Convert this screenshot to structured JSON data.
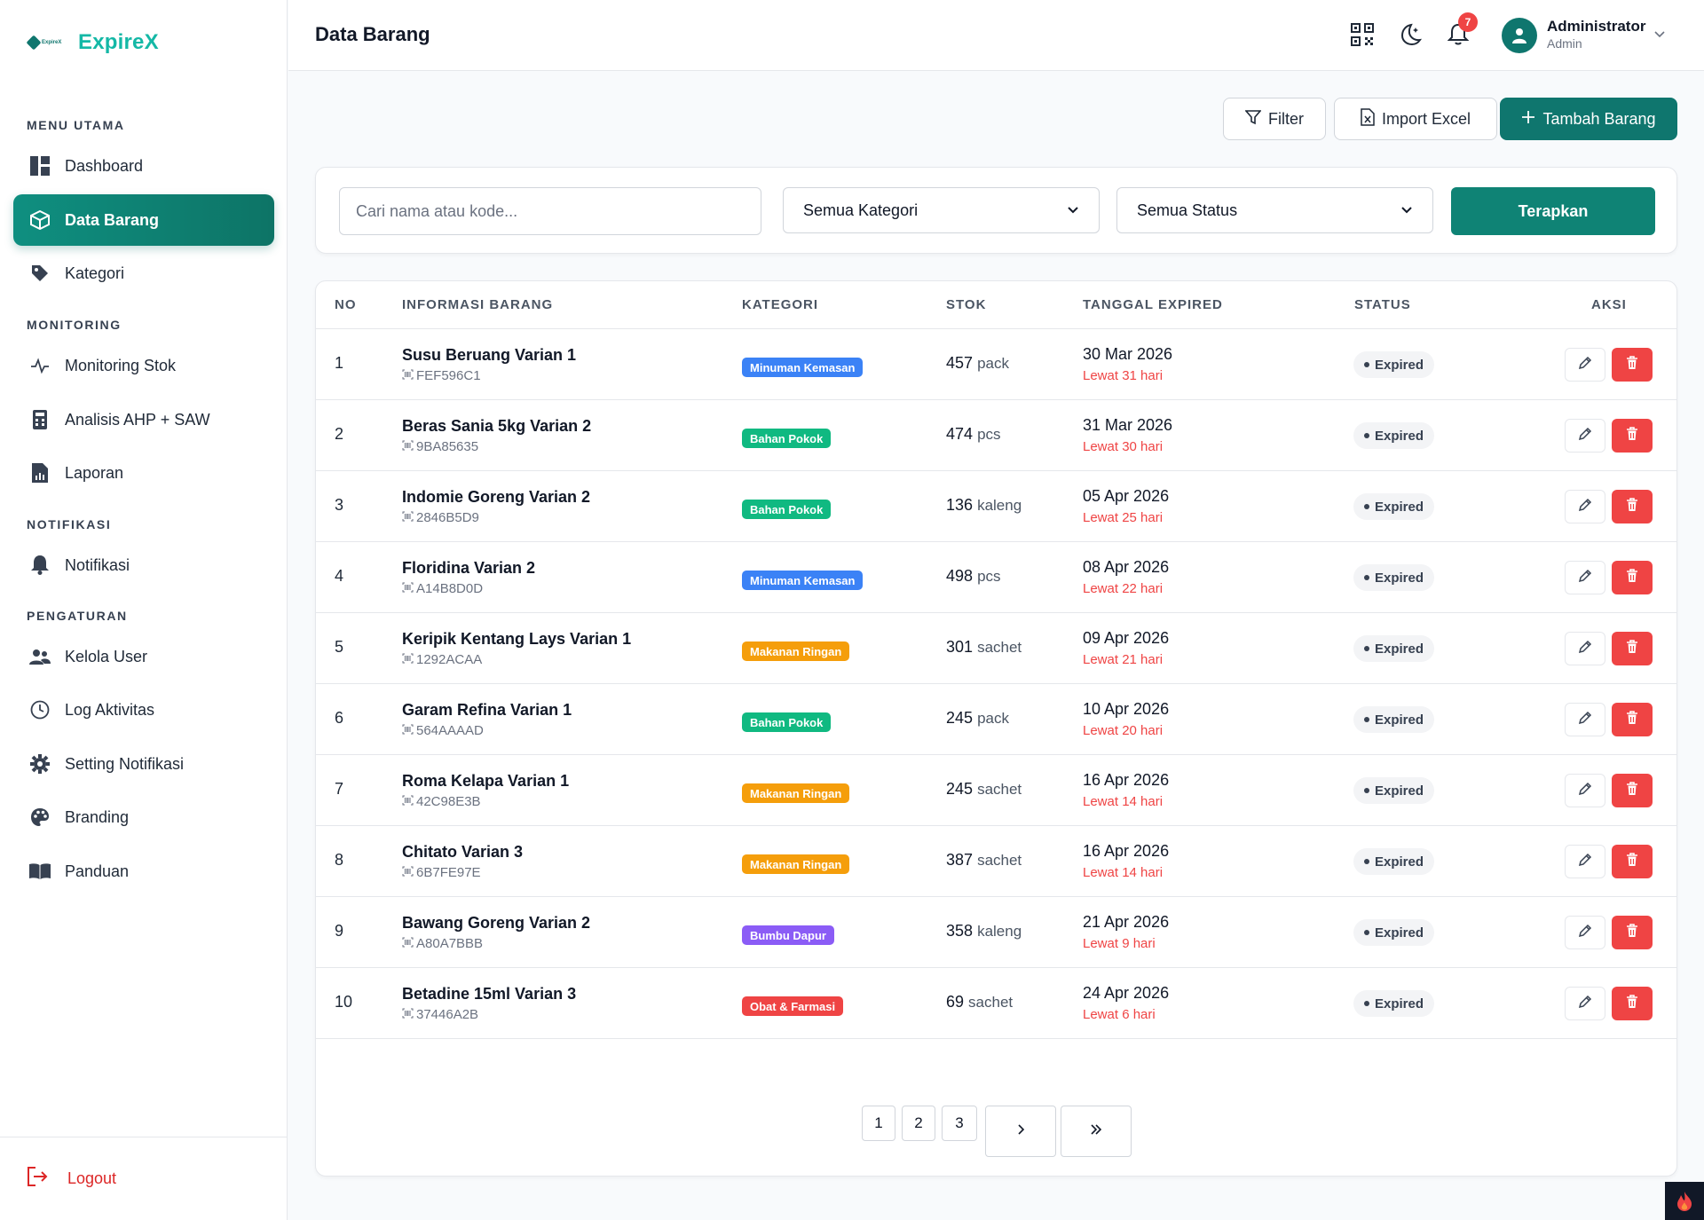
{
  "app": {
    "brand_name": "ExpireX",
    "logo_text": "ExpireX"
  },
  "sidebar": {
    "sections": [
      "MENU UTAMA",
      "MONITORING",
      "NOTIFIKASI",
      "PENGATURAN"
    ],
    "items": [
      {
        "label": "Dashboard",
        "icon": "dashboard-icon"
      },
      {
        "label": "Data Barang",
        "icon": "box-icon",
        "active": true
      },
      {
        "label": "Kategori",
        "icon": "tag-icon"
      },
      {
        "label": "Monitoring Stok",
        "icon": "activity-icon"
      },
      {
        "label": "Analisis AHP + SAW",
        "icon": "calculator-icon"
      },
      {
        "label": "Laporan",
        "icon": "report-icon"
      },
      {
        "label": "Notifikasi",
        "icon": "bell-icon"
      },
      {
        "label": "Kelola User",
        "icon": "users-icon"
      },
      {
        "label": "Log Aktivitas",
        "icon": "clock-icon"
      },
      {
        "label": "Setting Notifikasi",
        "icon": "gear-icon"
      },
      {
        "label": "Branding",
        "icon": "palette-icon"
      },
      {
        "label": "Panduan",
        "icon": "book-icon"
      }
    ],
    "logout_label": "Logout"
  },
  "header": {
    "title": "Data Barang",
    "notification_count": "7",
    "user_name": "Administrator",
    "user_role": "Admin"
  },
  "actions": {
    "filter_label": "Filter",
    "import_label": "Import Excel",
    "add_label": "Tambah Barang"
  },
  "filters": {
    "search_placeholder": "Cari nama atau kode...",
    "category_value": "Semua Kategori",
    "status_value": "Semua Status",
    "apply_label": "Terapkan"
  },
  "table": {
    "columns": [
      "NO",
      "INFORMASI BARANG",
      "KATEGORI",
      "STOK",
      "TANGGAL EXPIRED",
      "STATUS",
      "AKSI"
    ],
    "rows": [
      {
        "no": "1",
        "name": "Susu Beruang Varian 1",
        "code": "FEF596C1",
        "category": "Minuman Kemasan",
        "category_color": "#3b82f6",
        "stock": "457",
        "unit": "pack",
        "expired": "30 Mar 2026",
        "late": "Lewat 31 hari",
        "status": "Expired"
      },
      {
        "no": "2",
        "name": "Beras Sania 5kg Varian 2",
        "code": "9BA85635",
        "category": "Bahan Pokok",
        "category_color": "#10b981",
        "stock": "474",
        "unit": "pcs",
        "expired": "31 Mar 2026",
        "late": "Lewat 30 hari",
        "status": "Expired"
      },
      {
        "no": "3",
        "name": "Indomie Goreng Varian 2",
        "code": "2846B5D9",
        "category": "Bahan Pokok",
        "category_color": "#10b981",
        "stock": "136",
        "unit": "kaleng",
        "expired": "05 Apr 2026",
        "late": "Lewat 25 hari",
        "status": "Expired"
      },
      {
        "no": "4",
        "name": "Floridina Varian 2",
        "code": "A14B8D0D",
        "category": "Minuman Kemasan",
        "category_color": "#3b82f6",
        "stock": "498",
        "unit": "pcs",
        "expired": "08 Apr 2026",
        "late": "Lewat 22 hari",
        "status": "Expired"
      },
      {
        "no": "5",
        "name": "Keripik Kentang Lays Varian 1",
        "code": "1292ACAA",
        "category": "Makanan Ringan",
        "category_color": "#f59e0b",
        "stock": "301",
        "unit": "sachet",
        "expired": "09 Apr 2026",
        "late": "Lewat 21 hari",
        "status": "Expired"
      },
      {
        "no": "6",
        "name": "Garam Refina Varian 1",
        "code": "564AAAAD",
        "category": "Bahan Pokok",
        "category_color": "#10b981",
        "stock": "245",
        "unit": "pack",
        "expired": "10 Apr 2026",
        "late": "Lewat 20 hari",
        "status": "Expired"
      },
      {
        "no": "7",
        "name": "Roma Kelapa Varian 1",
        "code": "42C98E3B",
        "category": "Makanan Ringan",
        "category_color": "#f59e0b",
        "stock": "245",
        "unit": "sachet",
        "expired": "16 Apr 2026",
        "late": "Lewat 14 hari",
        "status": "Expired"
      },
      {
        "no": "8",
        "name": "Chitato Varian 3",
        "code": "6B7FE97E",
        "category": "Makanan Ringan",
        "category_color": "#f59e0b",
        "stock": "387",
        "unit": "sachet",
        "expired": "16 Apr 2026",
        "late": "Lewat 14 hari",
        "status": "Expired"
      },
      {
        "no": "9",
        "name": "Bawang Goreng Varian 2",
        "code": "A80A7BBB",
        "category": "Bumbu Dapur",
        "category_color": "#8b5cf6",
        "stock": "358",
        "unit": "kaleng",
        "expired": "21 Apr 2026",
        "late": "Lewat 9 hari",
        "status": "Expired"
      },
      {
        "no": "10",
        "name": "Betadine 15ml Varian 3",
        "code": "37446A2B",
        "category": "Obat & Farmasi",
        "category_color": "#ef4444",
        "stock": "69",
        "unit": "sachet",
        "expired": "24 Apr 2026",
        "late": "Lewat 6 hari",
        "status": "Expired"
      }
    ]
  },
  "pagination": {
    "pages": [
      "1",
      "2",
      "3"
    ]
  },
  "colors": {
    "primary": "#0f766e",
    "accent": "#14b8a6",
    "danger": "#ef4444"
  }
}
